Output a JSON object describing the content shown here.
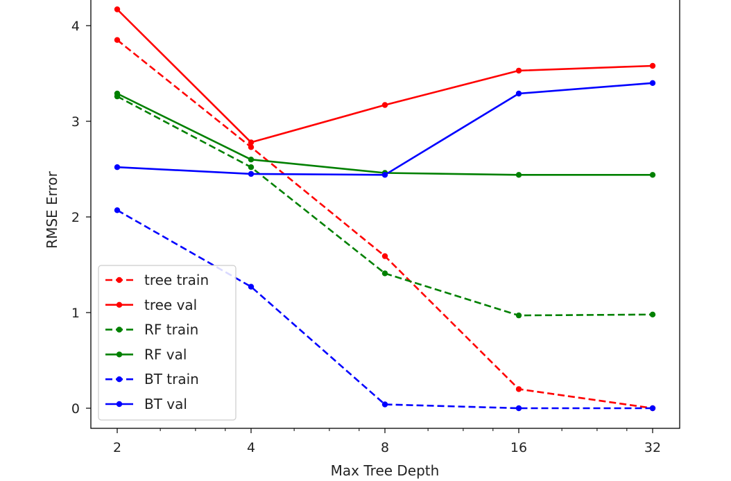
{
  "chart_data": {
    "type": "line",
    "title": "",
    "xlabel": "Max Tree Depth",
    "ylabel": "RMSE Error",
    "x_scale": "log2",
    "x": [
      2,
      4,
      8,
      16,
      32
    ],
    "x_tick_labels": [
      "2",
      "4",
      "8",
      "16",
      "32"
    ],
    "y_ticks": [
      0,
      1,
      2,
      3,
      4
    ],
    "y_tick_labels": [
      "0",
      "1",
      "2",
      "3",
      "4"
    ],
    "ylim": [
      -0.22,
      4.28
    ],
    "grid": false,
    "legend_position": "lower-left",
    "series": [
      {
        "name": "tree train",
        "color": "#ff0000",
        "dash": true,
        "values": [
          3.85,
          2.73,
          1.59,
          0.2,
          0.0
        ]
      },
      {
        "name": "tree val",
        "color": "#ff0000",
        "dash": false,
        "values": [
          4.17,
          2.78,
          3.17,
          3.53,
          3.58
        ]
      },
      {
        "name": "RF train",
        "color": "#008000",
        "dash": true,
        "values": [
          3.26,
          2.52,
          1.41,
          0.97,
          0.98
        ]
      },
      {
        "name": "RF val",
        "color": "#008000",
        "dash": false,
        "values": [
          3.29,
          2.6,
          2.46,
          2.44,
          2.44
        ]
      },
      {
        "name": "BT train",
        "color": "#0000ff",
        "dash": true,
        "values": [
          2.07,
          1.27,
          0.04,
          0.0,
          0.0
        ]
      },
      {
        "name": "BT val",
        "color": "#0000ff",
        "dash": false,
        "values": [
          2.52,
          2.45,
          2.44,
          3.29,
          3.4
        ]
      }
    ]
  }
}
